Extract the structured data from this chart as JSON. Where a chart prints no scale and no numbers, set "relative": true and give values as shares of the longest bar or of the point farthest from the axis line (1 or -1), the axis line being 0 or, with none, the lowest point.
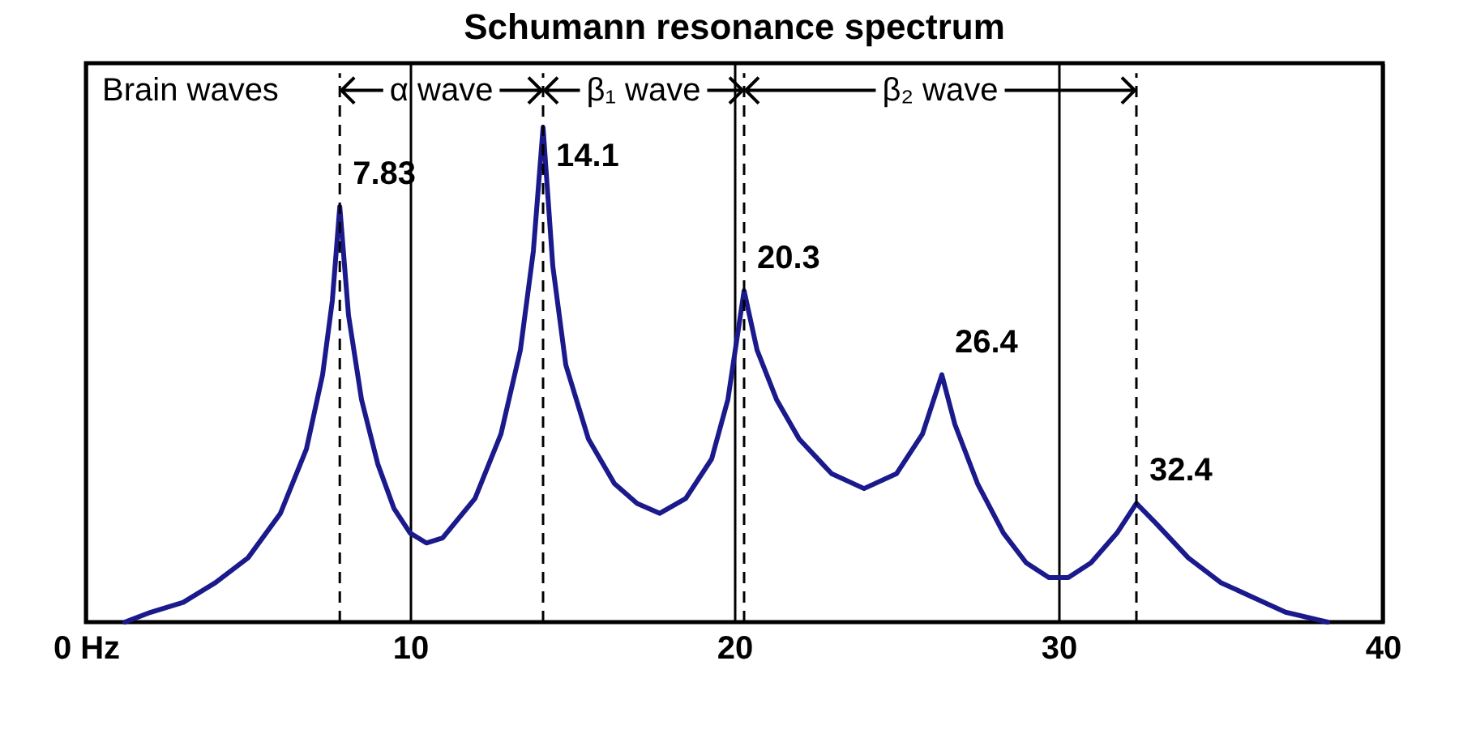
{
  "chart_data": {
    "type": "line",
    "title": "Schumann resonance spectrum",
    "relative": true,
    "x": [
      1.2,
      2,
      3,
      4,
      5,
      6,
      6.8,
      7.3,
      7.6,
      7.83,
      8.1,
      8.5,
      9,
      9.5,
      10,
      10.5,
      11,
      12,
      12.8,
      13.4,
      13.8,
      14.1,
      14.4,
      14.8,
      15.5,
      16.3,
      17,
      17.7,
      18.5,
      19.3,
      19.8,
      20.3,
      20.7,
      21.3,
      22,
      23,
      24,
      25,
      25.8,
      26.4,
      26.8,
      27.5,
      28.3,
      29,
      29.7,
      30.3,
      31,
      31.8,
      32.4,
      33,
      34,
      35,
      36,
      37,
      38.3
    ],
    "series": [
      {
        "color": "#1a1a8c",
        "values": [
          0,
          0.02,
          0.04,
          0.08,
          0.13,
          0.22,
          0.35,
          0.5,
          0.65,
          0.84,
          0.62,
          0.45,
          0.32,
          0.23,
          0.18,
          0.16,
          0.17,
          0.25,
          0.38,
          0.55,
          0.75,
          1.0,
          0.72,
          0.52,
          0.37,
          0.28,
          0.24,
          0.22,
          0.25,
          0.33,
          0.45,
          0.67,
          0.55,
          0.45,
          0.37,
          0.3,
          0.27,
          0.3,
          0.38,
          0.5,
          0.4,
          0.28,
          0.18,
          0.12,
          0.09,
          0.09,
          0.12,
          0.18,
          0.24,
          0.2,
          0.13,
          0.08,
          0.05,
          0.02,
          0
        ]
      }
    ],
    "xlim": [
      0,
      40
    ],
    "xticks": [
      {
        "value": 0,
        "label": "0 Hz"
      },
      10,
      20,
      30,
      40
    ],
    "grid": "x",
    "marker": "none",
    "line_style": "solid",
    "ref_lines": [
      {
        "axis": "x",
        "value": 7.83,
        "line_style": "dashed"
      },
      {
        "axis": "x",
        "value": 14.1,
        "line_style": "dashed"
      },
      {
        "axis": "x",
        "value": 20.3,
        "line_style": "dashed"
      },
      {
        "axis": "x",
        "value": 32.4,
        "line_style": "dashed"
      }
    ],
    "annotations": [
      "Brain waves",
      "α wave",
      "β₁ wave",
      "β₂ wave",
      {
        "text": "7.83",
        "x": 7.83,
        "y": 0.84
      },
      {
        "text": "14.1",
        "x": 14.1,
        "y": 1.0
      },
      {
        "text": "20.3",
        "x": 20.3,
        "y": 0.67
      },
      {
        "text": "26.4",
        "x": 26.4,
        "y": 0.5
      },
      {
        "text": "32.4",
        "x": 32.4,
        "y": 0.24
      }
    ]
  }
}
